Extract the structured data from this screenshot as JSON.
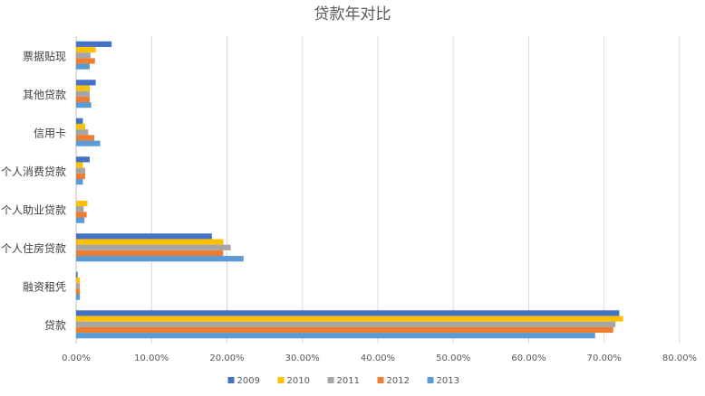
{
  "chart_data": {
    "type": "bar",
    "orientation": "horizontal",
    "title": "贷款年对比",
    "categories": [
      "票据贴现",
      "其他贷款",
      "信用卡",
      "个人消费贷款",
      "个人助业贷款",
      "个人住房贷款",
      "融资租凭",
      "贷款"
    ],
    "series": [
      {
        "name": "2009",
        "color": "#4472C4",
        "values": [
          4.7,
          2.6,
          0.9,
          1.8,
          0.0,
          18.0,
          0.2,
          72.0
        ]
      },
      {
        "name": "2010",
        "color": "#FFC000",
        "values": [
          2.6,
          1.8,
          1.2,
          0.9,
          1.5,
          19.5,
          0.5,
          72.5
        ]
      },
      {
        "name": "2011",
        "color": "#A5A5A5",
        "values": [
          1.9,
          1.8,
          1.6,
          1.2,
          1.0,
          20.5,
          0.5,
          71.5
        ]
      },
      {
        "name": "2012",
        "color": "#ED7D31",
        "values": [
          2.5,
          1.8,
          2.4,
          1.2,
          1.4,
          19.5,
          0.5,
          71.2
        ]
      },
      {
        "name": "2013",
        "color": "#5B9BD5",
        "values": [
          1.8,
          2.0,
          3.2,
          0.9,
          1.1,
          22.2,
          0.5,
          68.8
        ]
      }
    ],
    "xlim": [
      0,
      80
    ],
    "xticks": [
      "0.00%",
      "10.00%",
      "20.00%",
      "30.00%",
      "40.00%",
      "50.00%",
      "60.00%",
      "70.00%",
      "80.00%"
    ],
    "grid": true,
    "legend_position": "bottom"
  }
}
